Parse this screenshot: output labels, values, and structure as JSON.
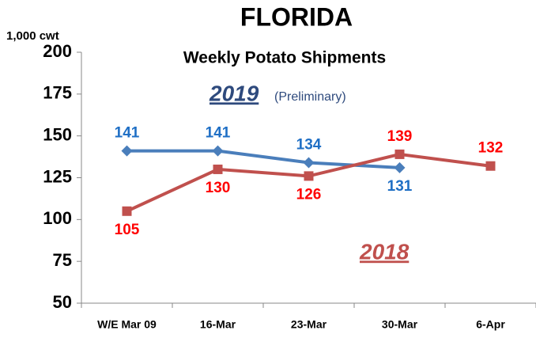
{
  "chart_data": {
    "type": "line",
    "title": "FLORIDA",
    "subtitle": "Weekly Potato Shipments",
    "y_label": "1,000  cwt",
    "annotations": {
      "year_2019": "2019",
      "preliminary": "(Preliminary)",
      "year_2018": "2018"
    },
    "categories": [
      "W/E Mar 09",
      "16-Mar",
      "23-Mar",
      "30-Mar",
      "6-Apr"
    ],
    "series": [
      {
        "name": "2019",
        "color": "#4a7ebb",
        "label_color": "#1f6fc5",
        "marker": "diamond",
        "values": [
          141,
          141,
          134,
          131,
          null
        ]
      },
      {
        "name": "2018",
        "color": "#c0504d",
        "label_color": "#ff0000",
        "marker": "square",
        "values": [
          105,
          130,
          126,
          139,
          132
        ]
      }
    ],
    "ylim": [
      50,
      200
    ],
    "yticks": [
      50,
      75,
      100,
      125,
      150,
      175,
      200
    ]
  }
}
